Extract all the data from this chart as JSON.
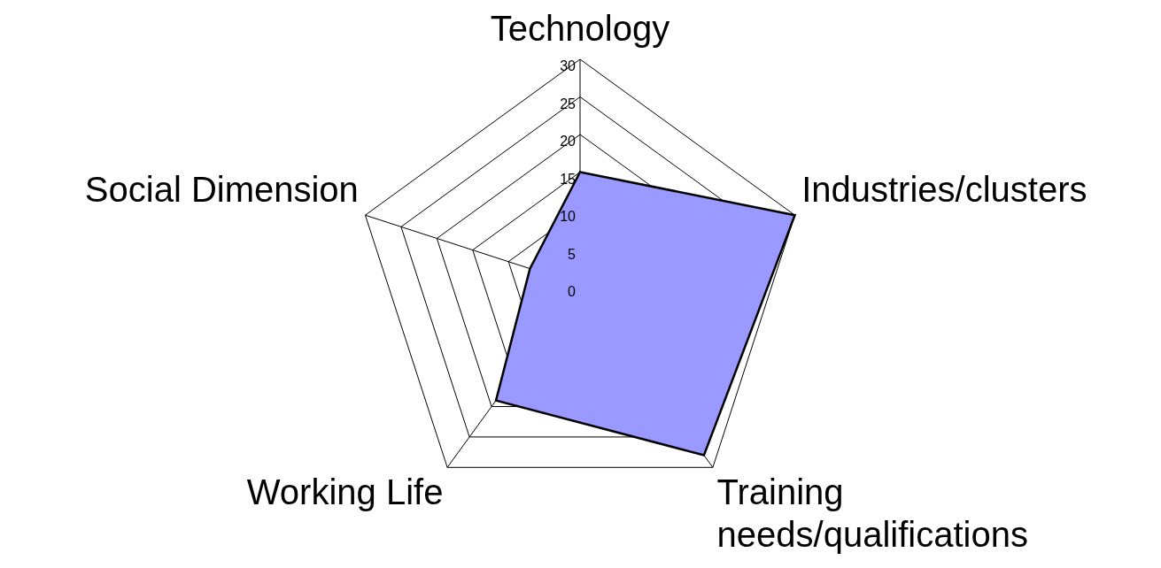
{
  "chart_data": {
    "type": "radar",
    "categories": [
      "Technology",
      "Industries/clusters",
      "Training needs/qualifications",
      "Working Life",
      "Social Dimension"
    ],
    "series": [
      {
        "color": "#9999ff",
        "values": [
          15,
          30,
          28,
          19,
          7
        ]
      }
    ],
    "ylim": [
      0,
      30
    ],
    "yticks": [
      0,
      5,
      10,
      15,
      20,
      25,
      30
    ],
    "grid": true,
    "legend": false,
    "marker": "none"
  }
}
